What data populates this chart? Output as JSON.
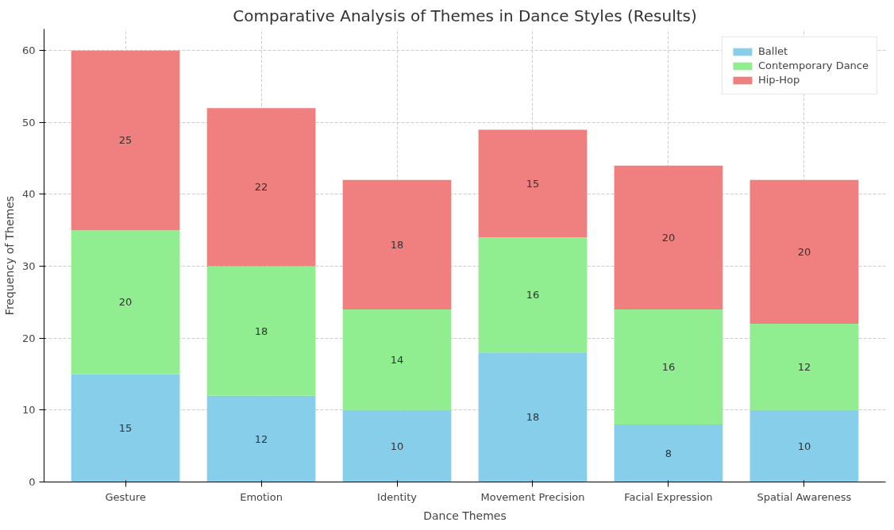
{
  "chart_data": {
    "type": "bar",
    "title": "Comparative Analysis of Themes in Dance Styles (Results)",
    "xlabel": "Dance Themes",
    "ylabel": "Frequency of Themes",
    "categories": [
      "Gesture",
      "Emotion",
      "Identity",
      "Movement Precision",
      "Facial Expression",
      "Spatial Awareness"
    ],
    "stacked": true,
    "series": [
      {
        "name": "Ballet",
        "color": "#87ceeb",
        "values": [
          15,
          12,
          10,
          18,
          8,
          10
        ]
      },
      {
        "name": "Contemporary Dance",
        "color": "#90ee90",
        "values": [
          20,
          18,
          14,
          16,
          16,
          12
        ]
      },
      {
        "name": "Hip-Hop",
        "color": "#f08080",
        "values": [
          25,
          22,
          18,
          15,
          20,
          20
        ]
      }
    ],
    "ylim": [
      0,
      63
    ],
    "yticks": [
      0,
      10,
      20,
      30,
      40,
      50,
      60
    ],
    "grid": true,
    "legend": "top right",
    "data_labels": true
  }
}
